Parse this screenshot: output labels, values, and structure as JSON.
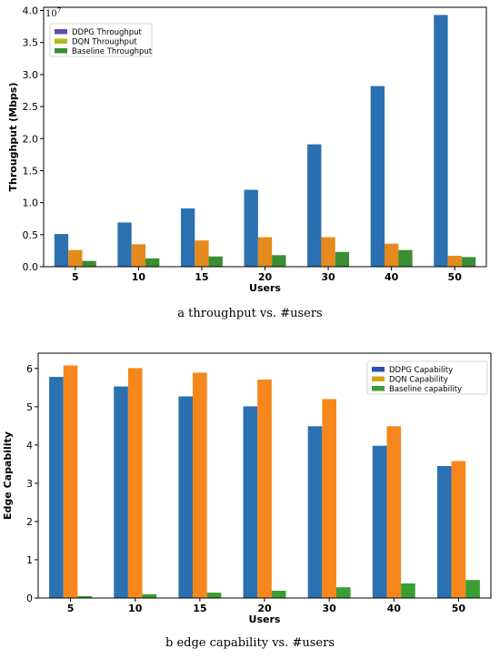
{
  "chart_data": [
    {
      "type": "bar",
      "caption": "a  throughput vs. #users",
      "categories": [
        "5",
        "10",
        "15",
        "20",
        "30",
        "40",
        "50"
      ],
      "series": [
        {
          "name": "DDPG Throughput",
          "color": "#2b70b1",
          "values": [
            0.51,
            0.69,
            0.91,
            1.2,
            1.91,
            2.82,
            3.93
          ]
        },
        {
          "name": "DQN Throughput",
          "color": "#e58a1c",
          "values": [
            0.26,
            0.35,
            0.41,
            0.46,
            0.46,
            0.36,
            0.17
          ]
        },
        {
          "name": "Baseline Throughput",
          "color": "#3a8d32",
          "values": [
            0.09,
            0.13,
            0.16,
            0.18,
            0.23,
            0.26,
            0.15
          ]
        }
      ],
      "legend_colors": [
        "#6a4aa6",
        "#b6b81c",
        "#3a8d32"
      ],
      "xlabel": "Users",
      "ylabel": "Throughput (Mbps)",
      "multiplier": "10",
      "multiplier_exp": "7",
      "yticks": [
        "0.0",
        "0.5",
        "1.0",
        "1.5",
        "2.0",
        "2.5",
        "3.0",
        "3.5",
        "4.0"
      ],
      "ylim": [
        0,
        4.05
      ],
      "legend_position": "top-left",
      "grid": false
    },
    {
      "type": "bar",
      "caption": "b  edge capability vs. #users",
      "categories": [
        "5",
        "10",
        "15",
        "20",
        "30",
        "40",
        "50"
      ],
      "series": [
        {
          "name": "DDPG Capability",
          "color": "#2b70b1",
          "values": [
            5.78,
            5.53,
            5.27,
            5.01,
            4.49,
            3.98,
            3.45
          ]
        },
        {
          "name": "DQN Capability",
          "color": "#f7871c",
          "values": [
            6.08,
            6.01,
            5.89,
            5.71,
            5.2,
            4.49,
            3.58
          ]
        },
        {
          "name": "Baseline capability",
          "color": "#3a9e35",
          "values": [
            0.05,
            0.1,
            0.14,
            0.19,
            0.28,
            0.38,
            0.47
          ]
        }
      ],
      "legend_colors": [
        "#2b4fb1",
        "#d4a214",
        "#3a9e35"
      ],
      "xlabel": "Users",
      "ylabel": "Edge Capability",
      "yticks": [
        "0",
        "1",
        "2",
        "3",
        "4",
        "5",
        "6"
      ],
      "ylim": [
        0,
        6.4
      ],
      "legend_position": "top-right",
      "grid": false
    }
  ]
}
